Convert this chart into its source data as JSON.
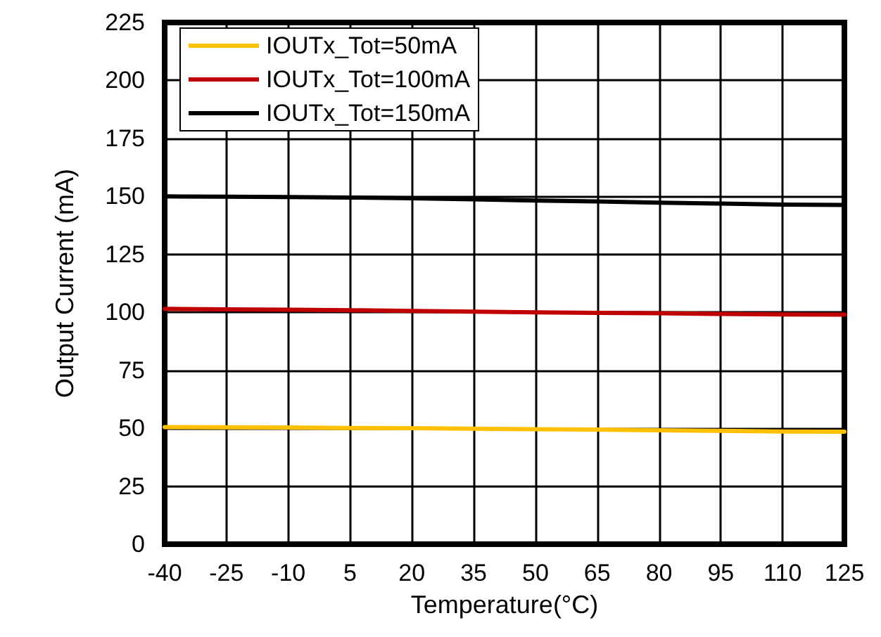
{
  "chart_data": {
    "type": "line",
    "xlabel": "Temperature(°C)",
    "ylabel": "Output Current (mA)",
    "x": [
      -40,
      -25,
      -10,
      5,
      20,
      35,
      50,
      65,
      80,
      95,
      110,
      125
    ],
    "series": [
      {
        "name": "IOUTx_Tot=50mA",
        "color": "#ffc000",
        "values": [
          50.5,
          50.4,
          50.3,
          50.1,
          50,
          49.8,
          49.6,
          49.4,
          49.1,
          48.9,
          48.6,
          48.5
        ]
      },
      {
        "name": "IOUTx_Tot=100mA",
        "color": "#c00000",
        "values": [
          101.5,
          101.3,
          101.1,
          100.9,
          100.6,
          100.3,
          100,
          99.8,
          99.6,
          99.3,
          99.1,
          99
        ]
      },
      {
        "name": "IOUTx_Tot=150mA",
        "color": "#000000",
        "values": [
          150,
          149.9,
          149.7,
          149.5,
          149.2,
          148.7,
          148.2,
          147.8,
          147.3,
          146.9,
          146.5,
          146.3
        ]
      }
    ],
    "xlim": [
      -40,
      125
    ],
    "xticks": [
      -40,
      -25,
      -10,
      5,
      20,
      35,
      50,
      65,
      80,
      95,
      110,
      125
    ],
    "ylim": [
      0,
      225
    ],
    "yticks": [
      0,
      25,
      50,
      75,
      100,
      125,
      150,
      175,
      200,
      225
    ],
    "grid": true,
    "legend": "top left",
    "marker": "none",
    "line_style": "solid"
  }
}
